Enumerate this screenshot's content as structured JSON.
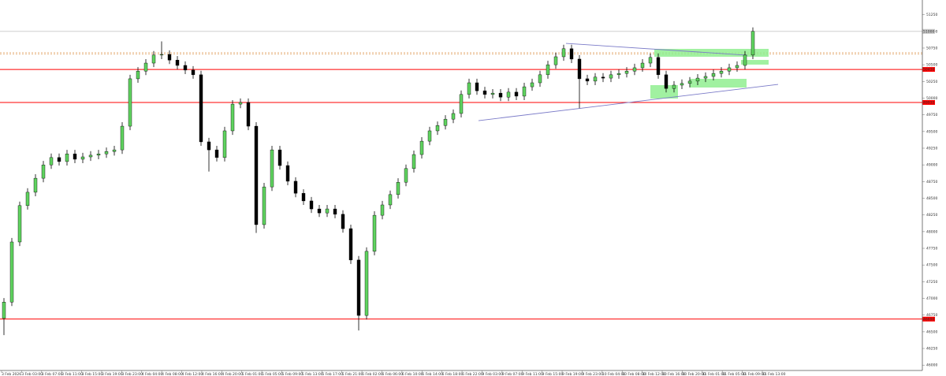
{
  "chart_data": {
    "type": "candlestick",
    "ylim": [
      45920,
      51470
    ],
    "yticks": [
      46000,
      46250,
      46500,
      46750,
      47000,
      47250,
      47500,
      47750,
      48000,
      48250,
      48500,
      48750,
      49000,
      49250,
      49500,
      49750,
      50000,
      50250,
      50500,
      50750,
      51000,
      51250
    ],
    "time_labels": [
      "3 Feb 2026",
      "3 Feb 03:00",
      "3 Feb 07:00",
      "3 Feb 11:00",
      "3 Feb 15:00",
      "3 Feb 19:00",
      "3 Feb 23:00",
      "4 Feb 04:00",
      "4 Feb 08:00",
      "4 Feb 12:00",
      "4 Feb 16:00",
      "4 Feb 20:00",
      "5 Feb 01:00",
      "5 Feb 05:00",
      "5 Feb 09:00",
      "5 Feb 13:00",
      "5 Feb 17:00",
      "5 Feb 21:00",
      "6 Feb 02:00",
      "6 Feb 06:00",
      "6 Feb 10:00",
      "6 Feb 14:00",
      "6 Feb 18:00",
      "6 Feb 22:00",
      "9 Feb 03:00",
      "9 Feb 07:00",
      "9 Feb 11:00",
      "9 Feb 15:00",
      "9 Feb 19:00",
      "9 Feb 23:00",
      "10 Feb 04:00",
      "10 Feb 08:00",
      "10 Feb 12:00",
      "10 Feb 16:00",
      "10 Feb 20:00",
      "11 Feb 01:00",
      "11 Feb 05:00",
      "11 Feb 09:00",
      "11 Feb 13:00"
    ],
    "up_color": "#5fd35f",
    "down_color": "#000000",
    "level_color": "#ff0000",
    "trend_color": "#7b7bc8",
    "zone_color": "#90ee90",
    "dotted_color": "#e0a060",
    "candles": [
      [
        46700,
        47005,
        46450,
        46945
      ],
      [
        46945,
        47905,
        46885,
        47845
      ],
      [
        47845,
        48450,
        47785,
        48390
      ],
      [
        48390,
        48650,
        48330,
        48590
      ],
      [
        48590,
        48860,
        48530,
        48800
      ],
      [
        48800,
        49060,
        48740,
        49000
      ],
      [
        49000,
        49170,
        48940,
        49110
      ],
      [
        49110,
        49170,
        48990,
        49050
      ],
      [
        49050,
        49225,
        48990,
        49165
      ],
      [
        49165,
        49225,
        49025,
        49085
      ],
      [
        49085,
        49180,
        49025,
        49120
      ],
      [
        49120,
        49205,
        49060,
        49145
      ],
      [
        49145,
        49225,
        49085,
        49165
      ],
      [
        49165,
        49260,
        49105,
        49200
      ],
      [
        49200,
        49285,
        49140,
        49225
      ],
      [
        49225,
        49640,
        49165,
        49580
      ],
      [
        49580,
        50350,
        49520,
        50290
      ],
      [
        50290,
        50465,
        50230,
        50405
      ],
      [
        50405,
        50585,
        50345,
        50525
      ],
      [
        50525,
        50705,
        50465,
        50645
      ],
      [
        50645,
        50850,
        50585,
        50655
      ],
      [
        50655,
        50715,
        50510,
        50570
      ],
      [
        50570,
        50630,
        50430,
        50490
      ],
      [
        50490,
        50550,
        50360,
        50420
      ],
      [
        50420,
        50480,
        50290,
        50350
      ],
      [
        50350,
        50410,
        49285,
        49345
      ],
      [
        49345,
        49405,
        48900,
        49225
      ],
      [
        49225,
        49285,
        49050,
        49110
      ],
      [
        49110,
        49570,
        49050,
        49510
      ],
      [
        49510,
        49970,
        49450,
        49910
      ],
      [
        49910,
        49995,
        49850,
        49935
      ],
      [
        49935,
        49995,
        49520,
        49580
      ],
      [
        49580,
        49640,
        47980,
        48105
      ],
      [
        48105,
        48730,
        48045,
        48670
      ],
      [
        48670,
        49285,
        48610,
        49225
      ],
      [
        49225,
        49285,
        48930,
        48990
      ],
      [
        48990,
        49050,
        48695,
        48755
      ],
      [
        48755,
        48815,
        48515,
        48575
      ],
      [
        48575,
        48635,
        48400,
        48460
      ],
      [
        48460,
        48520,
        48280,
        48340
      ],
      [
        48340,
        48400,
        48220,
        48280
      ],
      [
        48280,
        48400,
        48220,
        48340
      ],
      [
        48340,
        48400,
        48200,
        48260
      ],
      [
        48260,
        48320,
        47985,
        48045
      ],
      [
        48045,
        48105,
        47515,
        47575
      ],
      [
        47575,
        47635,
        46520,
        46745
      ],
      [
        46745,
        47765,
        46685,
        47705
      ],
      [
        47705,
        48305,
        47645,
        48245
      ],
      [
        48245,
        48460,
        48185,
        48400
      ],
      [
        48400,
        48615,
        48340,
        48555
      ],
      [
        48555,
        48800,
        48495,
        48740
      ],
      [
        48740,
        49005,
        48680,
        48945
      ],
      [
        48945,
        49215,
        48885,
        49155
      ],
      [
        49155,
        49415,
        49095,
        49355
      ],
      [
        49355,
        49570,
        49295,
        49510
      ],
      [
        49510,
        49650,
        49450,
        49590
      ],
      [
        49590,
        49745,
        49530,
        49685
      ],
      [
        49685,
        49830,
        49625,
        49770
      ],
      [
        49770,
        50115,
        49710,
        50055
      ],
      [
        50055,
        50290,
        49995,
        50230
      ],
      [
        50230,
        50290,
        50050,
        50110
      ],
      [
        50110,
        50170,
        49995,
        50055
      ],
      [
        50055,
        50135,
        49995,
        50075
      ],
      [
        50075,
        50135,
        49955,
        50015
      ],
      [
        50015,
        50150,
        49955,
        50090
      ],
      [
        50090,
        50150,
        49970,
        50030
      ],
      [
        50030,
        50230,
        49970,
        50170
      ],
      [
        50170,
        50290,
        50110,
        50230
      ],
      [
        50230,
        50410,
        50170,
        50350
      ],
      [
        50350,
        50560,
        50290,
        50500
      ],
      [
        50500,
        50680,
        50440,
        50620
      ],
      [
        50620,
        50800,
        50560,
        50740
      ],
      [
        50740,
        50800,
        50525,
        50585
      ],
      [
        50585,
        50645,
        49850,
        50290
      ],
      [
        50290,
        50350,
        50195,
        50255
      ],
      [
        50255,
        50375,
        50195,
        50315
      ],
      [
        50315,
        50375,
        50240,
        50300
      ],
      [
        50300,
        50410,
        50240,
        50350
      ],
      [
        50350,
        50430,
        50290,
        50370
      ],
      [
        50370,
        50465,
        50310,
        50405
      ],
      [
        50405,
        50515,
        50345,
        50455
      ],
      [
        50455,
        50585,
        50395,
        50525
      ],
      [
        50525,
        50670,
        50465,
        50610
      ],
      [
        50610,
        50670,
        50290,
        50350
      ],
      [
        50350,
        50410,
        50085,
        50145
      ],
      [
        50145,
        50255,
        50085,
        50195
      ],
      [
        50195,
        50280,
        50135,
        50220
      ],
      [
        50220,
        50315,
        50160,
        50255
      ],
      [
        50255,
        50360,
        50195,
        50300
      ],
      [
        50300,
        50385,
        50240,
        50325
      ],
      [
        50325,
        50430,
        50265,
        50370
      ],
      [
        50370,
        50465,
        50310,
        50405
      ],
      [
        50405,
        50515,
        50345,
        50455
      ],
      [
        50455,
        50550,
        50395,
        50490
      ],
      [
        50490,
        50705,
        50430,
        50645
      ],
      [
        50645,
        51060,
        50585,
        51000
      ]
    ],
    "levels": [
      50430,
      49935,
      46690
    ],
    "current_price": 51000,
    "dotted_levels": [
      50680,
      50660
    ],
    "trendlines": [
      [
        60.2,
        49663,
        98.2,
        50206
      ],
      [
        71.3,
        50820,
        94.3,
        50643
      ]
    ],
    "zones": [
      [
        82.5,
        50738,
        97,
        50620
      ],
      [
        93.5,
        50572,
        97,
        50502
      ],
      [
        87,
        50289,
        94.2,
        50159
      ],
      [
        82,
        50195,
        85.5,
        49994
      ]
    ]
  }
}
